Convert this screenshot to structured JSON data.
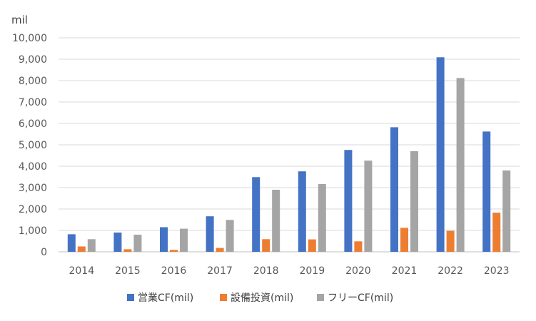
{
  "chart_data": {
    "type": "bar",
    "unit_label": "mil",
    "categories": [
      "2014",
      "2015",
      "2016",
      "2017",
      "2018",
      "2019",
      "2020",
      "2021",
      "2022",
      "2023"
    ],
    "series": [
      {
        "name": "営業CF(mil)",
        "color": "#4472C4",
        "values": [
          820,
          900,
          1150,
          1660,
          3490,
          3760,
          4760,
          5820,
          9090,
          5620
        ]
      },
      {
        "name": "設備投資(mil)",
        "color": "#ED7D31",
        "values": [
          250,
          120,
          90,
          180,
          590,
          580,
          490,
          1120,
          980,
          1830
        ]
      },
      {
        "name": "フリーCF(mil)",
        "color": "#A5A5A5",
        "values": [
          590,
          800,
          1080,
          1490,
          2900,
          3170,
          4260,
          4700,
          8120,
          3800
        ]
      }
    ],
    "ylim": [
      0,
      10000
    ],
    "y_ticks": [
      0,
      1000,
      2000,
      3000,
      4000,
      5000,
      6000,
      7000,
      8000,
      9000,
      10000
    ],
    "y_tick_labels": [
      "0",
      "1,000",
      "2,000",
      "3,000",
      "4,000",
      "5,000",
      "6,000",
      "7,000",
      "8,000",
      "9,000",
      "10,000"
    ],
    "grid": true,
    "legend_position": "bottom"
  }
}
